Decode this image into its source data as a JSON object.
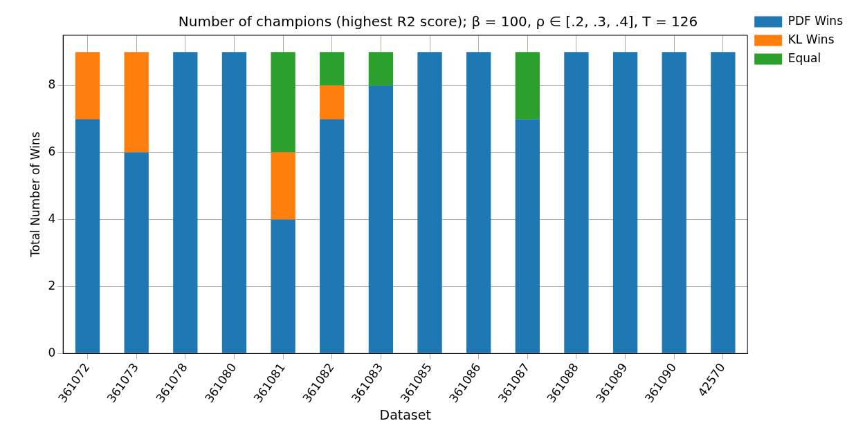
{
  "chart_data": {
    "type": "bar",
    "title": "Number of champions (highest R2 score); β = 100, ρ ∈ [.2, .3, .4], T = 126",
    "xlabel": "Dataset",
    "ylabel": "Total Number of Wins",
    "categories": [
      "361072",
      "361073",
      "361078",
      "361080",
      "361081",
      "361082",
      "361083",
      "361085",
      "361086",
      "361087",
      "361088",
      "361089",
      "361090",
      "42570"
    ],
    "stacked": true,
    "series": [
      {
        "name": "PDF Wins",
        "color": "#1f77b4",
        "values": [
          7,
          6,
          9,
          9,
          4,
          7,
          8,
          9,
          9,
          7,
          9,
          9,
          9,
          9
        ]
      },
      {
        "name": "KL Wins",
        "color": "#ff7f0e",
        "values": [
          2,
          3,
          0,
          0,
          2,
          1,
          0,
          0,
          0,
          0,
          0,
          0,
          0,
          0
        ]
      },
      {
        "name": "Equal",
        "color": "#2ca02c",
        "values": [
          0,
          0,
          0,
          0,
          3,
          1,
          1,
          0,
          0,
          2,
          0,
          0,
          0,
          0
        ]
      }
    ],
    "ylim": [
      0,
      9.5
    ],
    "yticks": [
      0,
      2,
      4,
      6,
      8
    ],
    "grid": true,
    "legend": "top right"
  }
}
